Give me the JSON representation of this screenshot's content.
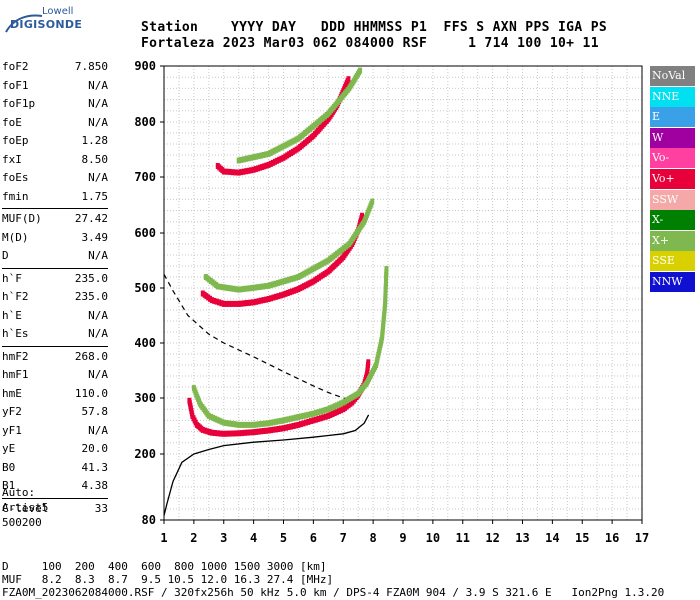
{
  "logo": {
    "line1": "Lowell",
    "line2": "DIGISONDE"
  },
  "header": {
    "line1": "Station    YYYY DAY   DDD HHMMSS P1  FFS S AXN PPS IGA PS",
    "line2": "Fortaleza 2023 Mar03 062 084000 RSF     1 714 100 10+ 11"
  },
  "params": [
    {
      "k": "foF2",
      "v": "7.850"
    },
    {
      "k": "foF1",
      "v": "N/A"
    },
    {
      "k": "foF1p",
      "v": "N/A"
    },
    {
      "k": "foE",
      "v": "N/A"
    },
    {
      "k": "foEp",
      "v": "1.28"
    },
    {
      "k": "fxI",
      "v": "8.50"
    },
    {
      "k": "foEs",
      "v": "N/A"
    },
    {
      "k": "fmin",
      "v": "1.75"
    },
    {
      "sep": true
    },
    {
      "k": "MUF(D)",
      "v": "27.42"
    },
    {
      "k": "M(D)",
      "v": "3.49"
    },
    {
      "k": "D",
      "v": "N/A"
    },
    {
      "sep": true
    },
    {
      "k": "h`F",
      "v": "235.0"
    },
    {
      "k": "h`F2",
      "v": "235.0"
    },
    {
      "k": "h`E",
      "v": "N/A"
    },
    {
      "k": "h`Es",
      "v": "N/A"
    },
    {
      "sep": true
    },
    {
      "k": "hmF2",
      "v": "268.0"
    },
    {
      "k": "hmF1",
      "v": "N/A"
    },
    {
      "k": "hmE",
      "v": "110.0"
    },
    {
      "k": "yF2",
      "v": "57.8"
    },
    {
      "k": "yF1",
      "v": "N/A"
    },
    {
      "k": "yE",
      "v": "20.0"
    },
    {
      "k": "B0",
      "v": "41.3"
    },
    {
      "k": "B1",
      "v": "4.38"
    },
    {
      "sep": true
    },
    {
      "k": "C-level",
      "v": "33"
    }
  ],
  "auto": {
    "line1": "Auto:",
    "line2": "Artist5",
    "line3": "500200"
  },
  "bottom": {
    "d_line": "D     100  200  400  600  800 1000 1500 3000 [km]",
    "muf_line": "MUF   8.2  8.3  8.7  9.5 10.5 12.0 16.3 27.4 [MHz]",
    "footer": "FZA0M_2023062084000.RSF / 320fx256h 50 kHz 5.0 km / DPS-4 FZA0M 904 / 3.9 S 321.6 E   Ion2Png 1.3.20"
  },
  "legend": [
    {
      "label": "NoVal",
      "color": "#808080"
    },
    {
      "label": "NNE",
      "color": "#00e0f0"
    },
    {
      "label": "E",
      "color": "#3aa0e8"
    },
    {
      "label": "W",
      "color": "#a000a0"
    },
    {
      "label": "Vo-",
      "color": "#ff40a0"
    },
    {
      "label": "Vo+",
      "color": "#e8003a"
    },
    {
      "label": "SSW",
      "color": "#f4a8a8"
    },
    {
      "label": "X-",
      "color": "#008000"
    },
    {
      "label": "X+",
      "color": "#80b850"
    },
    {
      "label": "SSE",
      "color": "#d8d000"
    },
    {
      "label": "NNW",
      "color": "#1010d0"
    }
  ],
  "chart_data": {
    "type": "scatter",
    "title": "",
    "xlabel": "",
    "ylabel": "",
    "xlim": [
      1,
      17
    ],
    "ylim": [
      80,
      900
    ],
    "x_ticks": [
      1,
      2,
      3,
      4,
      5,
      6,
      7,
      8,
      9,
      10,
      11,
      12,
      13,
      14,
      15,
      16,
      17
    ],
    "y_ticks": [
      80,
      200,
      300,
      400,
      500,
      600,
      700,
      800,
      900
    ],
    "grid": true,
    "traces": [
      {
        "mode": "O-trace F2",
        "color": "#e8003a",
        "points": [
          [
            1.85,
            295
          ],
          [
            1.95,
            268
          ],
          [
            2.1,
            252
          ],
          [
            2.3,
            243
          ],
          [
            2.6,
            238
          ],
          [
            3.0,
            236
          ],
          [
            3.5,
            237
          ],
          [
            4.0,
            239
          ],
          [
            4.5,
            242
          ],
          [
            5.0,
            246
          ],
          [
            5.5,
            252
          ],
          [
            6.0,
            260
          ],
          [
            6.5,
            268
          ],
          [
            7.0,
            280
          ],
          [
            7.3,
            292
          ],
          [
            7.5,
            305
          ],
          [
            7.7,
            325
          ],
          [
            7.8,
            345
          ],
          [
            7.85,
            370
          ]
        ]
      },
      {
        "mode": "X-trace F2",
        "color": "#80b850",
        "points": [
          [
            2.0,
            318
          ],
          [
            2.2,
            290
          ],
          [
            2.5,
            268
          ],
          [
            3.0,
            256
          ],
          [
            3.5,
            252
          ],
          [
            4.0,
            252
          ],
          [
            4.5,
            255
          ],
          [
            5.0,
            260
          ],
          [
            5.5,
            266
          ],
          [
            6.0,
            272
          ],
          [
            6.5,
            280
          ],
          [
            7.0,
            292
          ],
          [
            7.5,
            308
          ],
          [
            7.8,
            328
          ],
          [
            8.1,
            360
          ],
          [
            8.3,
            410
          ],
          [
            8.4,
            470
          ],
          [
            8.45,
            540
          ]
        ]
      },
      {
        "mode": "O multihop 2",
        "color": "#e8003a",
        "points": [
          [
            2.3,
            490
          ],
          [
            2.6,
            478
          ],
          [
            3.0,
            471
          ],
          [
            3.5,
            471
          ],
          [
            4.0,
            474
          ],
          [
            4.5,
            480
          ],
          [
            5.0,
            488
          ],
          [
            5.5,
            498
          ],
          [
            6.0,
            512
          ],
          [
            6.5,
            530
          ],
          [
            7.0,
            556
          ],
          [
            7.3,
            580
          ],
          [
            7.5,
            605
          ],
          [
            7.65,
            635
          ]
        ]
      },
      {
        "mode": "X multihop 2",
        "color": "#80b850",
        "points": [
          [
            2.4,
            520
          ],
          [
            2.8,
            503
          ],
          [
            3.5,
            497
          ],
          [
            4.5,
            504
          ],
          [
            5.5,
            520
          ],
          [
            6.5,
            550
          ],
          [
            7.2,
            580
          ],
          [
            7.7,
            620
          ],
          [
            8.0,
            660
          ]
        ]
      },
      {
        "mode": "O multihop 3",
        "color": "#e8003a",
        "points": [
          [
            2.8,
            720
          ],
          [
            3.0,
            710
          ],
          [
            3.5,
            708
          ],
          [
            4.0,
            713
          ],
          [
            4.5,
            722
          ],
          [
            5.0,
            735
          ],
          [
            5.5,
            752
          ],
          [
            6.0,
            775
          ],
          [
            6.5,
            805
          ],
          [
            6.8,
            830
          ],
          [
            7.0,
            855
          ],
          [
            7.2,
            880
          ]
        ]
      },
      {
        "mode": "X multihop 3",
        "color": "#80b850",
        "points": [
          [
            3.5,
            730
          ],
          [
            4.5,
            742
          ],
          [
            5.5,
            770
          ],
          [
            6.5,
            815
          ],
          [
            7.2,
            860
          ],
          [
            7.6,
            895
          ]
        ]
      }
    ],
    "true_height_profile": {
      "color": "#000000",
      "points": [
        [
          1.0,
          88
        ],
        [
          1.1,
          110
        ],
        [
          1.3,
          150
        ],
        [
          1.6,
          185
        ],
        [
          2.0,
          200
        ],
        [
          2.5,
          208
        ],
        [
          3.0,
          215
        ],
        [
          4.0,
          221
        ],
        [
          5.0,
          225
        ],
        [
          6.0,
          230
        ],
        [
          6.5,
          233
        ],
        [
          7.0,
          236
        ],
        [
          7.4,
          242
        ],
        [
          7.7,
          255
        ],
        [
          7.85,
          270
        ]
      ]
    },
    "plasma_frequency_profile": {
      "color": "#000000",
      "style": "dashed",
      "points": [
        [
          1.0,
          525
        ],
        [
          1.3,
          495
        ],
        [
          1.8,
          450
        ],
        [
          2.5,
          416
        ],
        [
          3.0,
          400
        ],
        [
          4.0,
          375
        ],
        [
          5.0,
          348
        ],
        [
          5.5,
          335
        ],
        [
          6.0,
          322
        ],
        [
          6.5,
          310
        ],
        [
          7.0,
          300
        ],
        [
          7.3,
          296
        ]
      ]
    }
  }
}
